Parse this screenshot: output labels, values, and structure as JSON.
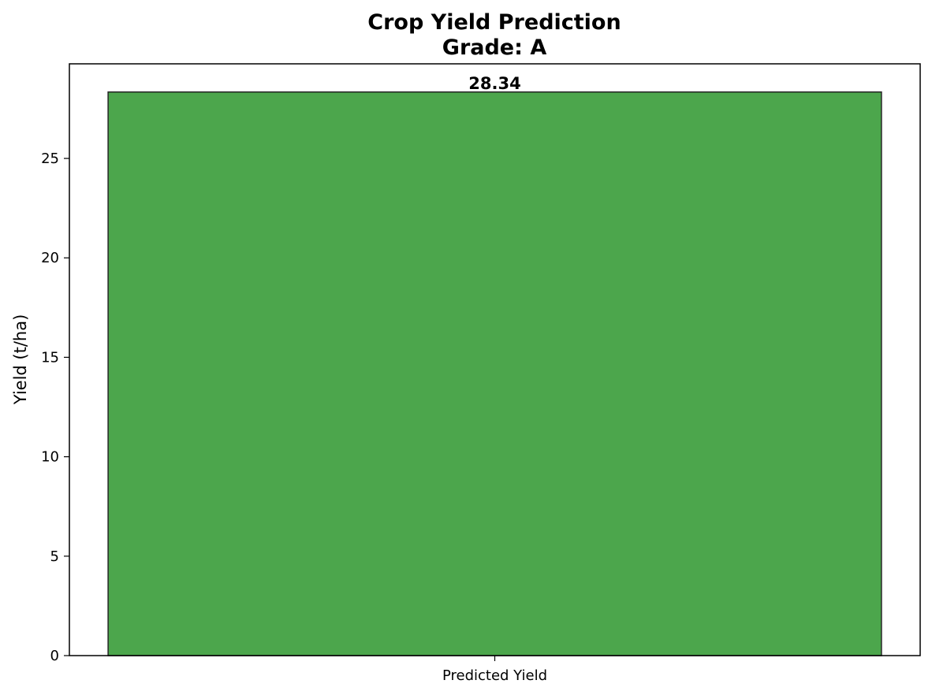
{
  "chart_data": {
    "type": "bar",
    "title": "Crop Yield Prediction",
    "subtitle": "Grade: A",
    "xlabel": "",
    "ylabel": "Yield (t/ha)",
    "categories": [
      "Predicted Yield"
    ],
    "values": [
      28.34
    ],
    "data_labels": [
      "28.34"
    ],
    "ylim": [
      0,
      29.757
    ],
    "yticks": [
      0,
      5,
      10,
      15,
      20,
      25
    ],
    "ytick_labels": [
      "0",
      "5",
      "10",
      "15",
      "20",
      "25"
    ],
    "grid": false,
    "legend": "none",
    "colors": {
      "bar_fill": "#4ca64c",
      "bar_edge": "#262626",
      "axes": "#000000"
    }
  }
}
